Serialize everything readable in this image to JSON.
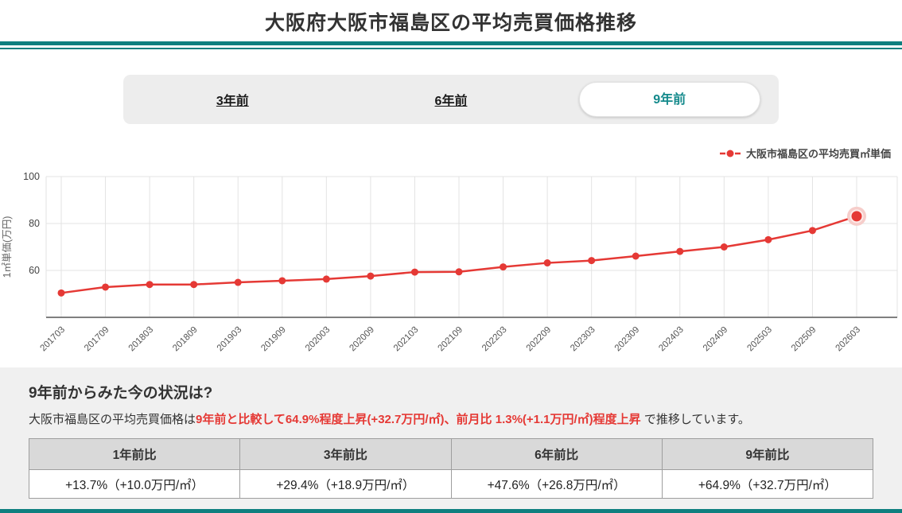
{
  "header": {
    "title": "大阪府大阪市福島区の平均売買価格推移"
  },
  "colors": {
    "accent_teal": "#0e7f7f",
    "series_red": "#e53935",
    "highlight_halo": "#f6cdca",
    "section_bg": "#f0f0f0",
    "tabbar_bg": "#ededed",
    "table_header_bg": "#d9d9d9",
    "grid_line": "#e3e3e3"
  },
  "tabs": {
    "items": [
      {
        "label": "3年前",
        "active": false
      },
      {
        "label": "6年前",
        "active": false
      },
      {
        "label": "9年前",
        "active": true
      }
    ]
  },
  "legend": {
    "label": "大阪市福島区の平均売買㎡単価"
  },
  "chart_data": {
    "type": "line",
    "title": "大阪府大阪市福島区の平均売買価格推移",
    "x": [
      "201703",
      "201709",
      "201803",
      "201809",
      "201903",
      "201909",
      "202003",
      "202009",
      "202103",
      "202109",
      "202203",
      "202209",
      "202303",
      "202309",
      "202403",
      "202409",
      "202503",
      "202509",
      "202603"
    ],
    "series": [
      {
        "name": "大阪市福島区の平均売買㎡単価",
        "color": "#e53935",
        "values": [
          50.4,
          52.9,
          54.0,
          54.0,
          54.9,
          55.6,
          56.3,
          57.6,
          59.3,
          59.4,
          61.5,
          63.2,
          64.2,
          66.1,
          68.1,
          70.0,
          73.1,
          77.0,
          83.1
        ]
      }
    ],
    "xlabel": "",
    "ylabel": "1㎡単価(万円)",
    "ylim": [
      40,
      100
    ],
    "yticks": [
      60,
      80,
      100
    ],
    "grid": true,
    "legend_position": "top-right",
    "highlight_last_point": true
  },
  "summary": {
    "heading": "9年前からみた今の状況は?",
    "text_prefix": "大阪市福島区の平均売買価格は",
    "text_highlight": "9年前と比較して64.9%程度上昇(+32.7万円/㎡)、前月比 1.3%(+1.1万円/㎡)程度上昇",
    "text_suffix": " で推移しています。"
  },
  "comparison_table": {
    "headers": [
      "1年前比",
      "3年前比",
      "6年前比",
      "9年前比"
    ],
    "values": [
      "+13.7%（+10.0万円/㎡）",
      "+29.4%（+18.9万円/㎡）",
      "+47.6%（+26.8万円/㎡）",
      "+64.9%（+32.7万円/㎡）"
    ]
  }
}
